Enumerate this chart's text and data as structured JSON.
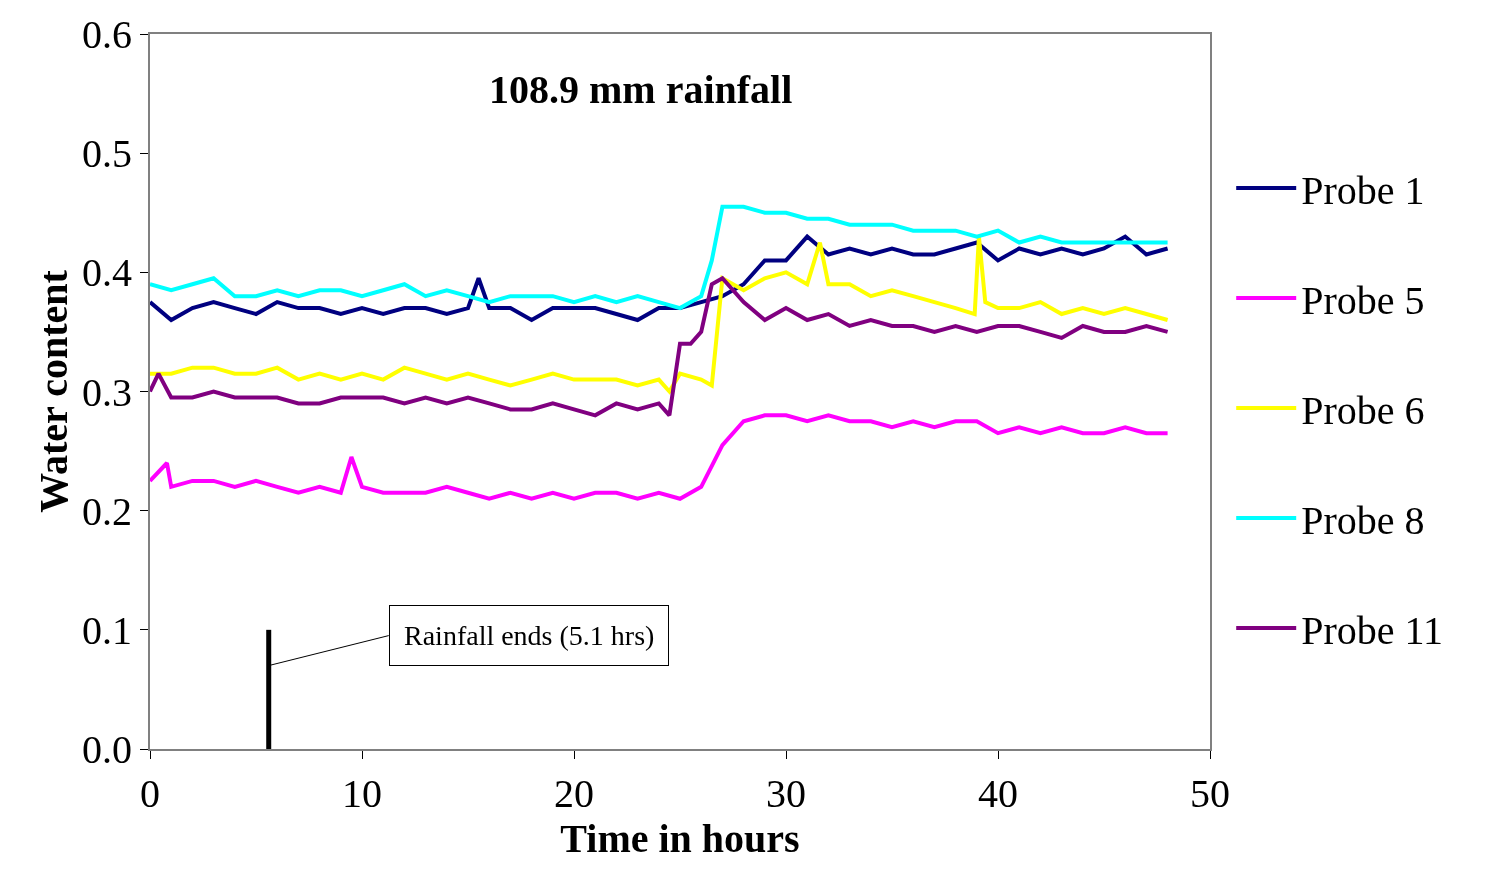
{
  "chart_data": {
    "type": "line",
    "title": "108.9 mm rainfall",
    "xlabel": "Time in hours",
    "ylabel": "Water content",
    "xlim": [
      0,
      50
    ],
    "xticks": [
      0,
      10,
      20,
      30,
      40,
      50
    ],
    "ylim": [
      0,
      0.6
    ],
    "yticks": [
      {
        "value": 0,
        "label": "0.0"
      },
      0.1,
      0.2,
      0.3,
      0.4,
      0.5,
      0.6
    ],
    "legend": "right",
    "marker": "none",
    "line_style": "solid",
    "annotations": [
      {
        "text": "Rainfall ends (5.1 hrs)",
        "x": 5.6,
        "y": 0.07
      }
    ],
    "series": [
      {
        "name": "Probe 1",
        "color": "#000080",
        "x": [
          0,
          1,
          2,
          3,
          4,
          5,
          6,
          7,
          8,
          9,
          10,
          11,
          12,
          13,
          14,
          15,
          15.5,
          16,
          17,
          18,
          19,
          20,
          21,
          22,
          23,
          24,
          25,
          26,
          27,
          28,
          29,
          30,
          31,
          32,
          33,
          34,
          35,
          36,
          37,
          38,
          39,
          40,
          41,
          42,
          43,
          44,
          45,
          46,
          47,
          48
        ],
        "values": [
          0.375,
          0.36,
          0.37,
          0.375,
          0.37,
          0.365,
          0.375,
          0.37,
          0.37,
          0.365,
          0.37,
          0.365,
          0.37,
          0.37,
          0.365,
          0.37,
          0.395,
          0.37,
          0.37,
          0.36,
          0.37,
          0.37,
          0.37,
          0.365,
          0.36,
          0.37,
          0.37,
          0.375,
          0.38,
          0.39,
          0.41,
          0.41,
          0.43,
          0.415,
          0.42,
          0.415,
          0.42,
          0.415,
          0.415,
          0.42,
          0.425,
          0.41,
          0.42,
          0.415,
          0.42,
          0.415,
          0.42,
          0.43,
          0.415,
          0.42
        ]
      },
      {
        "name": "Probe 5",
        "color": "#ff00ff",
        "x": [
          0,
          0.8,
          1,
          2,
          3,
          4,
          5,
          6,
          7,
          8,
          9,
          9.5,
          10,
          11,
          12,
          13,
          14,
          15,
          16,
          17,
          18,
          19,
          20,
          21,
          22,
          23,
          24,
          25,
          26,
          27,
          28,
          29,
          30,
          31,
          32,
          33,
          34,
          35,
          36,
          37,
          38,
          39,
          40,
          41,
          42,
          43,
          44,
          45,
          46,
          47,
          48
        ],
        "values": [
          0.225,
          0.24,
          0.22,
          0.225,
          0.225,
          0.22,
          0.225,
          0.22,
          0.215,
          0.22,
          0.215,
          0.245,
          0.22,
          0.215,
          0.215,
          0.215,
          0.22,
          0.215,
          0.21,
          0.215,
          0.21,
          0.215,
          0.21,
          0.215,
          0.215,
          0.21,
          0.215,
          0.21,
          0.22,
          0.255,
          0.275,
          0.28,
          0.28,
          0.275,
          0.28,
          0.275,
          0.275,
          0.27,
          0.275,
          0.27,
          0.275,
          0.275,
          0.265,
          0.27,
          0.265,
          0.27,
          0.265,
          0.265,
          0.27,
          0.265,
          0.265
        ]
      },
      {
        "name": "Probe 6",
        "color": "#ffff00",
        "x": [
          0,
          1,
          2,
          3,
          4,
          5,
          6,
          7,
          8,
          9,
          10,
          11,
          12,
          13,
          14,
          15,
          16,
          17,
          18,
          19,
          20,
          21,
          22,
          23,
          24,
          24.5,
          25,
          26,
          26.5,
          27,
          28,
          29,
          30,
          31,
          31.6,
          32,
          33,
          34,
          35,
          36,
          37,
          38,
          38.9,
          39.1,
          39.4,
          40,
          41,
          42,
          43,
          44,
          45,
          46,
          47,
          48
        ],
        "values": [
          0.315,
          0.315,
          0.32,
          0.32,
          0.315,
          0.315,
          0.32,
          0.31,
          0.315,
          0.31,
          0.315,
          0.31,
          0.32,
          0.315,
          0.31,
          0.315,
          0.31,
          0.305,
          0.31,
          0.315,
          0.31,
          0.31,
          0.31,
          0.305,
          0.31,
          0.3,
          0.315,
          0.31,
          0.305,
          0.395,
          0.385,
          0.395,
          0.4,
          0.39,
          0.425,
          0.39,
          0.39,
          0.38,
          0.385,
          0.38,
          0.375,
          0.37,
          0.365,
          0.43,
          0.375,
          0.37,
          0.37,
          0.375,
          0.365,
          0.37,
          0.365,
          0.37,
          0.365,
          0.36
        ]
      },
      {
        "name": "Probe 8",
        "color": "#00ffff",
        "x": [
          0,
          1,
          2,
          3,
          4,
          5,
          6,
          7,
          8,
          9,
          10,
          11,
          12,
          13,
          14,
          15,
          16,
          17,
          18,
          19,
          20,
          21,
          22,
          23,
          24,
          25,
          26,
          26.5,
          27,
          28,
          29,
          30,
          31,
          32,
          33,
          34,
          35,
          36,
          37,
          38,
          39,
          40,
          41,
          42,
          43,
          44,
          45,
          46,
          47,
          48
        ],
        "values": [
          0.39,
          0.385,
          0.39,
          0.395,
          0.38,
          0.38,
          0.385,
          0.38,
          0.385,
          0.385,
          0.38,
          0.385,
          0.39,
          0.38,
          0.385,
          0.38,
          0.375,
          0.38,
          0.38,
          0.38,
          0.375,
          0.38,
          0.375,
          0.38,
          0.375,
          0.37,
          0.38,
          0.41,
          0.455,
          0.455,
          0.45,
          0.45,
          0.445,
          0.445,
          0.44,
          0.44,
          0.44,
          0.435,
          0.435,
          0.435,
          0.43,
          0.435,
          0.425,
          0.43,
          0.425,
          0.425,
          0.425,
          0.425,
          0.425,
          0.425
        ]
      },
      {
        "name": "Probe 11",
        "color": "#800080",
        "x": [
          0,
          0.4,
          1,
          2,
          3,
          4,
          5,
          6,
          7,
          8,
          9,
          10,
          11,
          12,
          13,
          14,
          15,
          16,
          17,
          18,
          19,
          20,
          21,
          22,
          23,
          24,
          24.5,
          25,
          25.5,
          26,
          26.5,
          27,
          28,
          29,
          30,
          31,
          32,
          33,
          34,
          35,
          36,
          37,
          38,
          39,
          40,
          41,
          42,
          43,
          44,
          45,
          46,
          47,
          48
        ],
        "values": [
          0.3,
          0.315,
          0.295,
          0.295,
          0.3,
          0.295,
          0.295,
          0.295,
          0.29,
          0.29,
          0.295,
          0.295,
          0.295,
          0.29,
          0.295,
          0.29,
          0.295,
          0.29,
          0.285,
          0.285,
          0.29,
          0.285,
          0.28,
          0.29,
          0.285,
          0.29,
          0.28,
          0.34,
          0.34,
          0.35,
          0.39,
          0.395,
          0.375,
          0.36,
          0.37,
          0.36,
          0.365,
          0.355,
          0.36,
          0.355,
          0.355,
          0.35,
          0.355,
          0.35,
          0.355,
          0.355,
          0.35,
          0.345,
          0.355,
          0.35,
          0.35,
          0.355,
          0.35
        ]
      },
      {
        "color": "#000000",
        "x": [
          5.6,
          5.6
        ],
        "values": [
          0,
          0.1
        ]
      }
    ]
  }
}
